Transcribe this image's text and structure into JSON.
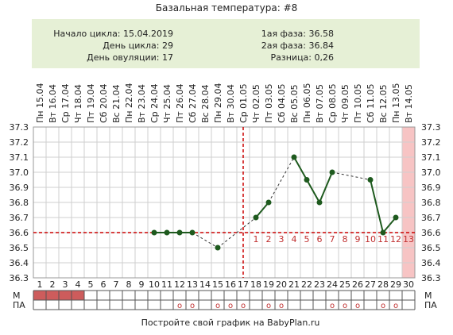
{
  "chart_data": {
    "type": "line",
    "title": "Базальная температура: #8",
    "info_left": [
      "Начало цикла: 15.04.2019",
      "День цикла: 29",
      "День овуляции: 17"
    ],
    "info_right": [
      "1ая фаза: 36.58",
      "2ая фаза: 36.84",
      "Разница: 0,26"
    ],
    "categories": [
      "Пн 15.04",
      "Вт 16.04",
      "Ср 17.04",
      "Чт 18.04",
      "Пт 19.04",
      "Сб 20.04",
      "Вс 21.04",
      "Пн 22.04",
      "Вт 23.04",
      "Ср 24.04",
      "Чт 25.04",
      "Пт 26.04",
      "Сб 27.04",
      "Вс 28.04",
      "Пн 29.04",
      "Вт 30.04",
      "Ср 01.05",
      "Чт 02.05",
      "Пт 03.05",
      "Сб 04.05",
      "Вс 05.05",
      "Пн 06.05",
      "Вт 07.05",
      "Ср 08.05",
      "Чт 09.05",
      "Пт 10.05",
      "Сб 11.05",
      "Вс 12.05",
      "Пн 13.05",
      "Вт 14.05"
    ],
    "day_numbers": [
      1,
      2,
      3,
      4,
      5,
      6,
      7,
      8,
      9,
      10,
      11,
      12,
      13,
      14,
      15,
      16,
      17,
      18,
      19,
      20,
      21,
      22,
      23,
      24,
      25,
      26,
      27,
      28,
      29,
      30
    ],
    "values": [
      null,
      null,
      null,
      null,
      null,
      null,
      null,
      null,
      null,
      36.6,
      36.6,
      36.6,
      36.6,
      null,
      36.5,
      null,
      null,
      36.7,
      36.8,
      null,
      37.1,
      36.95,
      36.8,
      37.0,
      null,
      null,
      36.95,
      36.6,
      36.7,
      null
    ],
    "color": "#1e5a1e",
    "ylim": [
      36.3,
      37.3
    ],
    "yticks": [
      {
        "value": 36.3,
        "label": "36.3"
      },
      {
        "value": 36.4,
        "label": "36.4"
      },
      {
        "value": 36.5,
        "label": "36.5"
      },
      {
        "value": 36.6,
        "label": "36.6"
      },
      {
        "value": 36.7,
        "label": "36.7"
      },
      {
        "value": 36.8,
        "label": "36.8"
      },
      {
        "value": 36.9,
        "label": "36.9"
      },
      {
        "value": 37.0,
        "label": "37.0"
      },
      {
        "value": 37.1,
        "label": "37.1"
      },
      {
        "value": 37.2,
        "label": "37.2"
      },
      {
        "value": 37.3,
        "label": "37.3"
      }
    ],
    "grid": true,
    "coverline": 36.6,
    "ovulation_day": 17,
    "phase2_labels": [
      1,
      2,
      3,
      4,
      5,
      6,
      7,
      8,
      9,
      10,
      11,
      12,
      13
    ],
    "future_day": 30,
    "row_labels": [
      "М",
      "ПА"
    ],
    "m_days": [
      1,
      2,
      3,
      4
    ],
    "pa": [
      null,
      null,
      null,
      null,
      null,
      null,
      null,
      null,
      null,
      null,
      null,
      "o",
      "o",
      null,
      "o",
      "o",
      "o",
      null,
      "o",
      "o",
      null,
      null,
      null,
      "o",
      "o",
      "o",
      null,
      "o",
      "o",
      null
    ],
    "footer": "Постройте свой график на BabyPlan.ru"
  }
}
